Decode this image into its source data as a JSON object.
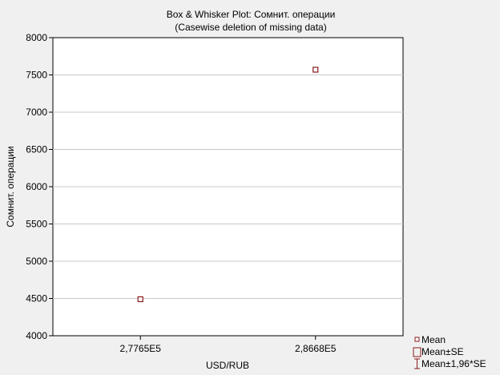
{
  "chart_data": {
    "type": "box",
    "title": "Box & Whisker Plot: Сомнит. операции",
    "subtitle": "(Casewise deletion of missing data)",
    "xlabel": "USD/RUB",
    "ylabel": "Сомнит. операции",
    "categories": [
      "2,7765E5",
      "2,8668E5"
    ],
    "series": [
      {
        "name": "Mean",
        "values": [
          4490,
          7570
        ]
      }
    ],
    "ylim": [
      4000,
      8000
    ],
    "yticks": [
      "4000",
      "4500",
      "5000",
      "5500",
      "6000",
      "6500",
      "7000",
      "7500",
      "8000"
    ],
    "grid": true,
    "legend_position": "bottom-right",
    "legend": [
      "Mean",
      "Mean±SE",
      "Mean±1,96*SE"
    ],
    "colors": {
      "marker": "#8b1a1a",
      "background": "#f0f0f0",
      "plot_background": "#ffffff",
      "grid": "#c8c8c8"
    }
  }
}
